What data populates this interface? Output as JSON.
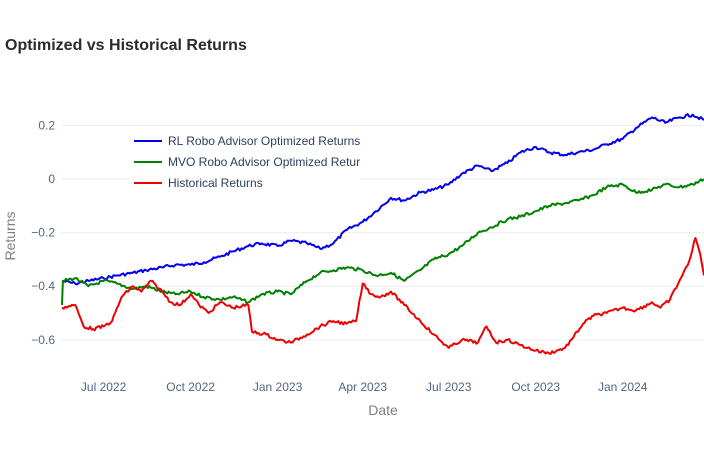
{
  "chart_data": {
    "type": "line",
    "title": "Optimized vs Historical Returns",
    "xlabel": "Date",
    "ylabel": "Returns",
    "x_range": [
      "2022-05-18",
      "2024-03-27"
    ],
    "ylim": [
      -0.72,
      0.295
    ],
    "x_ticks": [
      {
        "date": "2022-07-01",
        "label": "Jul 2022"
      },
      {
        "date": "2022-10-01",
        "label": "Oct 2022"
      },
      {
        "date": "2023-01-01",
        "label": "Jan 2023"
      },
      {
        "date": "2023-04-01",
        "label": "Apr 2023"
      },
      {
        "date": "2023-07-01",
        "label": "Jul 2023"
      },
      {
        "date": "2023-10-01",
        "label": "Oct 2023"
      },
      {
        "date": "2024-01-01",
        "label": "Jan 2024"
      }
    ],
    "y_ticks": [
      {
        "value": 0.2,
        "label": "0.2"
      },
      {
        "value": 0,
        "label": "0"
      },
      {
        "value": -0.2,
        "label": "−0.2"
      },
      {
        "value": -0.4,
        "label": "−0.4"
      },
      {
        "value": -0.6,
        "label": "−0.6"
      }
    ],
    "grid": true,
    "legend_position": "top-left inside",
    "series": [
      {
        "name": "RL Robo Advisor Optimized Returns",
        "color": "#0000ee",
        "points": [
          [
            "2022-05-18",
            -0.38
          ],
          [
            "2022-06-01",
            -0.39
          ],
          [
            "2022-06-15",
            -0.38
          ],
          [
            "2022-07-01",
            -0.37
          ],
          [
            "2022-07-15",
            -0.36
          ],
          [
            "2022-08-01",
            -0.35
          ],
          [
            "2022-08-15",
            -0.34
          ],
          [
            "2022-09-01",
            -0.33
          ],
          [
            "2022-09-15",
            -0.32
          ],
          [
            "2022-10-01",
            -0.32
          ],
          [
            "2022-10-15",
            -0.31
          ],
          [
            "2022-11-01",
            -0.29
          ],
          [
            "2022-11-15",
            -0.27
          ],
          [
            "2022-12-01",
            -0.25
          ],
          [
            "2022-12-15",
            -0.24
          ],
          [
            "2023-01-01",
            -0.25
          ],
          [
            "2023-01-15",
            -0.23
          ],
          [
            "2023-02-01",
            -0.24
          ],
          [
            "2023-02-15",
            -0.26
          ],
          [
            "2023-03-01",
            -0.24
          ],
          [
            "2023-03-15",
            -0.19
          ],
          [
            "2023-04-01",
            -0.16
          ],
          [
            "2023-04-15",
            -0.12
          ],
          [
            "2023-05-01",
            -0.07
          ],
          [
            "2023-05-15",
            -0.08
          ],
          [
            "2023-06-01",
            -0.05
          ],
          [
            "2023-06-15",
            -0.04
          ],
          [
            "2023-07-01",
            -0.02
          ],
          [
            "2023-07-15",
            0.02
          ],
          [
            "2023-08-01",
            0.05
          ],
          [
            "2023-08-15",
            0.03
          ],
          [
            "2023-09-01",
            0.06
          ],
          [
            "2023-09-15",
            0.1
          ],
          [
            "2023-10-01",
            0.12
          ],
          [
            "2023-10-15",
            0.1
          ],
          [
            "2023-11-01",
            0.09
          ],
          [
            "2023-11-15",
            0.1
          ],
          [
            "2023-12-01",
            0.11
          ],
          [
            "2023-12-15",
            0.13
          ],
          [
            "2024-01-01",
            0.15
          ],
          [
            "2024-01-15",
            0.19
          ],
          [
            "2024-02-01",
            0.23
          ],
          [
            "2024-02-15",
            0.21
          ],
          [
            "2024-03-01",
            0.23
          ],
          [
            "2024-03-15",
            0.24
          ],
          [
            "2024-03-27",
            0.22
          ]
        ]
      },
      {
        "name": "MVO Robo Advisor Optimized Retur",
        "color": "#008000",
        "points": [
          [
            "2022-05-18",
            -0.47
          ],
          [
            "2022-05-19",
            -0.38
          ],
          [
            "2022-06-01",
            -0.37
          ],
          [
            "2022-06-15",
            -0.4
          ],
          [
            "2022-07-01",
            -0.38
          ],
          [
            "2022-07-15",
            -0.39
          ],
          [
            "2022-08-01",
            -0.41
          ],
          [
            "2022-08-15",
            -0.4
          ],
          [
            "2022-09-01",
            -0.42
          ],
          [
            "2022-09-15",
            -0.43
          ],
          [
            "2022-10-01",
            -0.42
          ],
          [
            "2022-10-15",
            -0.44
          ],
          [
            "2022-11-01",
            -0.45
          ],
          [
            "2022-11-15",
            -0.44
          ],
          [
            "2022-12-01",
            -0.46
          ],
          [
            "2022-12-15",
            -0.43
          ],
          [
            "2023-01-01",
            -0.42
          ],
          [
            "2023-01-15",
            -0.43
          ],
          [
            "2023-02-01",
            -0.38
          ],
          [
            "2023-02-15",
            -0.35
          ],
          [
            "2023-03-01",
            -0.34
          ],
          [
            "2023-03-15",
            -0.33
          ],
          [
            "2023-04-01",
            -0.34
          ],
          [
            "2023-04-15",
            -0.36
          ],
          [
            "2023-05-01",
            -0.35
          ],
          [
            "2023-05-15",
            -0.38
          ],
          [
            "2023-06-01",
            -0.34
          ],
          [
            "2023-06-15",
            -0.3
          ],
          [
            "2023-07-01",
            -0.28
          ],
          [
            "2023-07-15",
            -0.25
          ],
          [
            "2023-08-01",
            -0.2
          ],
          [
            "2023-08-15",
            -0.18
          ],
          [
            "2023-09-01",
            -0.15
          ],
          [
            "2023-09-15",
            -0.14
          ],
          [
            "2023-10-01",
            -0.12
          ],
          [
            "2023-10-15",
            -0.1
          ],
          [
            "2023-11-01",
            -0.09
          ],
          [
            "2023-11-15",
            -0.08
          ],
          [
            "2023-12-01",
            -0.06
          ],
          [
            "2023-12-15",
            -0.03
          ],
          [
            "2024-01-01",
            -0.02
          ],
          [
            "2024-01-15",
            -0.05
          ],
          [
            "2024-02-01",
            -0.04
          ],
          [
            "2024-02-15",
            -0.02
          ],
          [
            "2024-03-01",
            -0.03
          ],
          [
            "2024-03-15",
            -0.02
          ],
          [
            "2024-03-27",
            0.0
          ]
        ]
      },
      {
        "name": "Historical Returns",
        "color": "#ee0000",
        "points": [
          [
            "2022-05-18",
            -0.48
          ],
          [
            "2022-06-01",
            -0.47
          ],
          [
            "2022-06-10",
            -0.55
          ],
          [
            "2022-06-20",
            -0.56
          ],
          [
            "2022-07-01",
            -0.55
          ],
          [
            "2022-07-10",
            -0.53
          ],
          [
            "2022-07-20",
            -0.44
          ],
          [
            "2022-08-01",
            -0.4
          ],
          [
            "2022-08-10",
            -0.42
          ],
          [
            "2022-08-20",
            -0.38
          ],
          [
            "2022-09-01",
            -0.42
          ],
          [
            "2022-09-10",
            -0.46
          ],
          [
            "2022-09-20",
            -0.47
          ],
          [
            "2022-10-01",
            -0.43
          ],
          [
            "2022-10-10",
            -0.47
          ],
          [
            "2022-10-20",
            -0.5
          ],
          [
            "2022-11-01",
            -0.46
          ],
          [
            "2022-11-15",
            -0.48
          ],
          [
            "2022-12-01",
            -0.47
          ],
          [
            "2022-12-05",
            -0.57
          ],
          [
            "2022-12-20",
            -0.58
          ],
          [
            "2023-01-01",
            -0.6
          ],
          [
            "2023-01-15",
            -0.61
          ],
          [
            "2023-02-01",
            -0.58
          ],
          [
            "2023-02-15",
            -0.55
          ],
          [
            "2023-03-01",
            -0.53
          ],
          [
            "2023-03-15",
            -0.54
          ],
          [
            "2023-03-25",
            -0.53
          ],
          [
            "2023-04-01",
            -0.39
          ],
          [
            "2023-04-10",
            -0.43
          ],
          [
            "2023-04-20",
            -0.44
          ],
          [
            "2023-05-01",
            -0.42
          ],
          [
            "2023-05-15",
            -0.47
          ],
          [
            "2023-06-01",
            -0.53
          ],
          [
            "2023-06-15",
            -0.58
          ],
          [
            "2023-07-01",
            -0.63
          ],
          [
            "2023-07-15",
            -0.6
          ],
          [
            "2023-08-01",
            -0.61
          ],
          [
            "2023-08-10",
            -0.55
          ],
          [
            "2023-08-20",
            -0.61
          ],
          [
            "2023-09-01",
            -0.6
          ],
          [
            "2023-09-15",
            -0.62
          ],
          [
            "2023-10-01",
            -0.64
          ],
          [
            "2023-10-15",
            -0.65
          ],
          [
            "2023-11-01",
            -0.63
          ],
          [
            "2023-11-10",
            -0.59
          ],
          [
            "2023-11-20",
            -0.54
          ],
          [
            "2023-12-01",
            -0.51
          ],
          [
            "2023-12-15",
            -0.5
          ],
          [
            "2024-01-01",
            -0.48
          ],
          [
            "2024-01-15",
            -0.49
          ],
          [
            "2024-02-01",
            -0.46
          ],
          [
            "2024-02-10",
            -0.48
          ],
          [
            "2024-02-20",
            -0.45
          ],
          [
            "2024-03-01",
            -0.38
          ],
          [
            "2024-03-10",
            -0.32
          ],
          [
            "2024-03-18",
            -0.22
          ],
          [
            "2024-03-23",
            -0.28
          ],
          [
            "2024-03-27",
            -0.36
          ]
        ]
      }
    ]
  }
}
